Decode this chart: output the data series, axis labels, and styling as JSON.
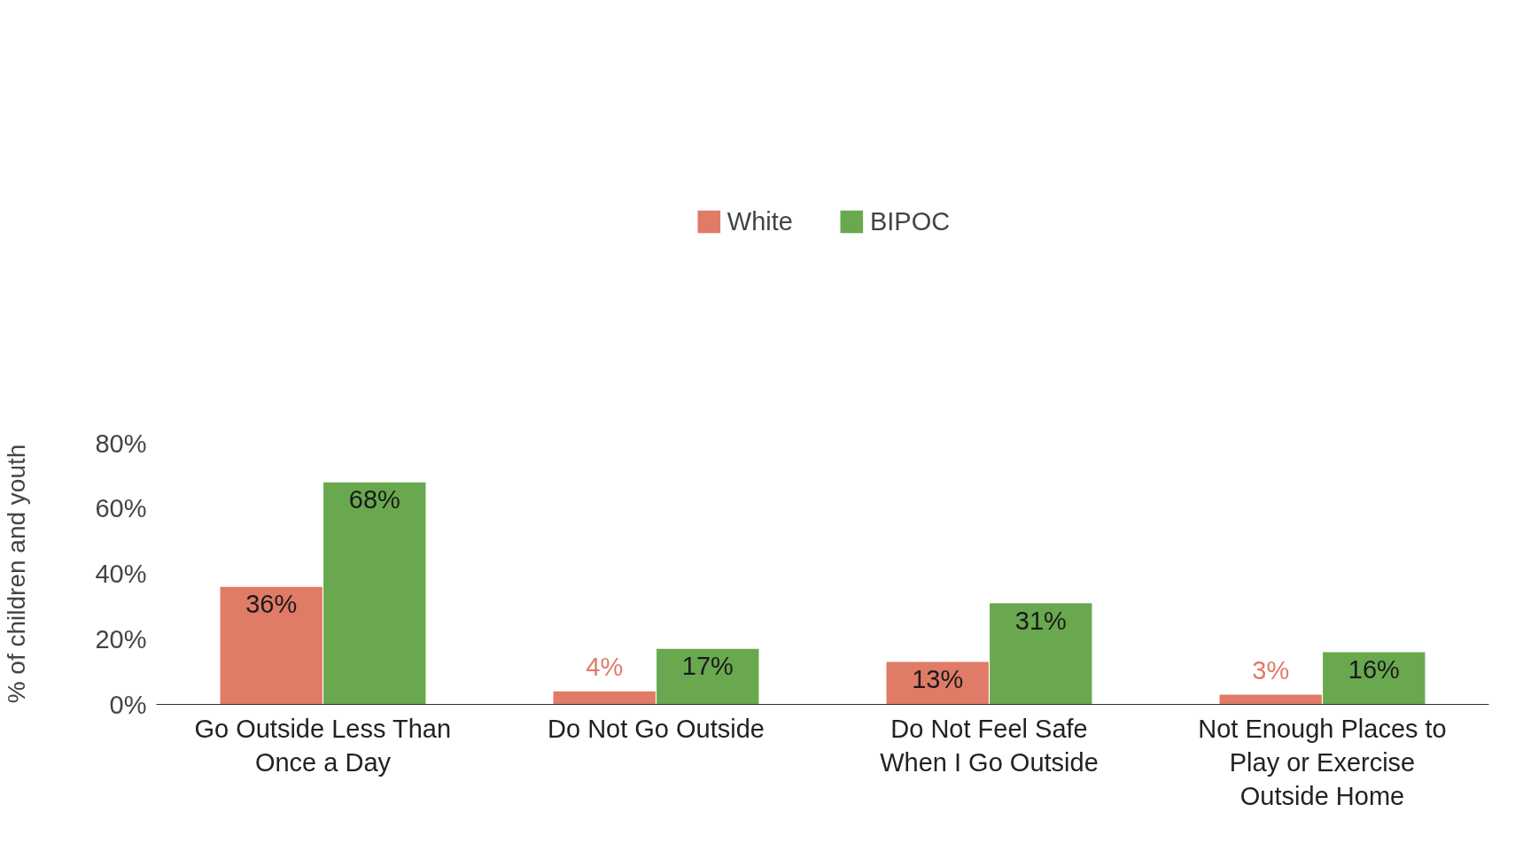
{
  "chart_data": {
    "type": "bar",
    "ylabel": "% of children and youth",
    "categories": [
      "Go Outside Less Than\nOnce a Day",
      "Do Not Go Outside",
      "Do Not Feel Safe\nWhen I Go Outside",
      "Not Enough Places to\nPlay or Exercise\nOutside Home"
    ],
    "series": [
      {
        "name": "White",
        "color": "#e07b67",
        "values": [
          36,
          4,
          13,
          3
        ],
        "value_labels": [
          "36%",
          "4%",
          "13%",
          "3%"
        ]
      },
      {
        "name": "BIPOC",
        "color": "#6aa84f",
        "values": [
          68,
          17,
          31,
          16
        ],
        "value_labels": [
          "68%",
          "17%",
          "31%",
          "16%"
        ]
      }
    ],
    "ylim": [
      0,
      80
    ],
    "yticks": [
      {
        "value": 0,
        "label": "0%"
      },
      {
        "value": 20,
        "label": "20%"
      },
      {
        "value": 40,
        "label": "40%"
      },
      {
        "value": 60,
        "label": "60%"
      },
      {
        "value": 80,
        "label": "80%"
      }
    ],
    "legend": "top",
    "grid": false
  }
}
